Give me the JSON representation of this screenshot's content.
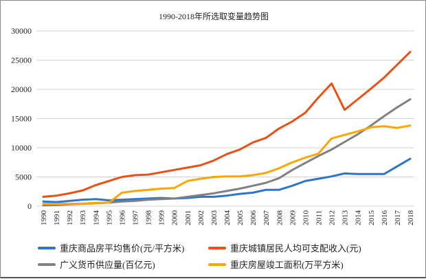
{
  "chart_data": {
    "type": "line",
    "title": "1990-2018年所选取变量趋势图",
    "xlabel": "",
    "ylabel": "",
    "ylim": [
      0,
      30000
    ],
    "yticks": [
      0,
      5000,
      10000,
      15000,
      20000,
      25000,
      30000
    ],
    "grid": true,
    "legend_position": "bottom",
    "x": [
      "1990",
      "1991",
      "1992",
      "1993",
      "1994",
      "1995",
      "1996",
      "1997",
      "1998",
      "1999",
      "2000",
      "2001",
      "2002",
      "2003",
      "2004",
      "2005",
      "2006",
      "2007",
      "2008",
      "2009",
      "2010",
      "2011",
      "2012",
      "2013",
      "2014",
      "2015",
      "2016",
      "2017",
      "2018"
    ],
    "series": [
      {
        "name": "重庆商品房平均售价(元/平方米)",
        "color": "#2E75C9",
        "values": [
          800,
          700,
          900,
          1100,
          1200,
          1000,
          1100,
          1200,
          1300,
          1400,
          1300,
          1400,
          1600,
          1600,
          1800,
          2100,
          2300,
          2800,
          2800,
          3500,
          4300,
          4700,
          5100,
          5600,
          5500,
          5500,
          5500,
          6800,
          8100
        ]
      },
      {
        "name": "重庆城镇居民人均可支配收入(元)",
        "color": "#EB4F14",
        "values": [
          1600,
          1800,
          2200,
          2700,
          3600,
          4300,
          5000,
          5300,
          5400,
          5800,
          6200,
          6600,
          7000,
          7800,
          8900,
          9700,
          10900,
          11700,
          13300,
          14500,
          16000,
          18600,
          21000,
          16500,
          18300,
          20100,
          22000,
          24200,
          26400
        ]
      },
      {
        "name": "广义货币供应量(百亿元)",
        "color": "#808080",
        "values": [
          150,
          200,
          300,
          400,
          500,
          600,
          800,
          900,
          1100,
          1200,
          1300,
          1600,
          1900,
          2200,
          2600,
          3000,
          3500,
          4000,
          4800,
          6200,
          7400,
          8600,
          9700,
          11000,
          12300,
          13800,
          15400,
          16900,
          18300
        ]
      },
      {
        "name": "重庆房屋竣工面积(万平方米)",
        "color": "#FFA500",
        "values": [
          400,
          400,
          400,
          450,
          550,
          600,
          2300,
          2600,
          2800,
          3000,
          3100,
          4300,
          4700,
          5000,
          5100,
          5100,
          5300,
          5700,
          6500,
          7500,
          8300,
          9000,
          11600,
          12200,
          12800,
          13500,
          13700,
          13400,
          13800
        ]
      }
    ]
  }
}
